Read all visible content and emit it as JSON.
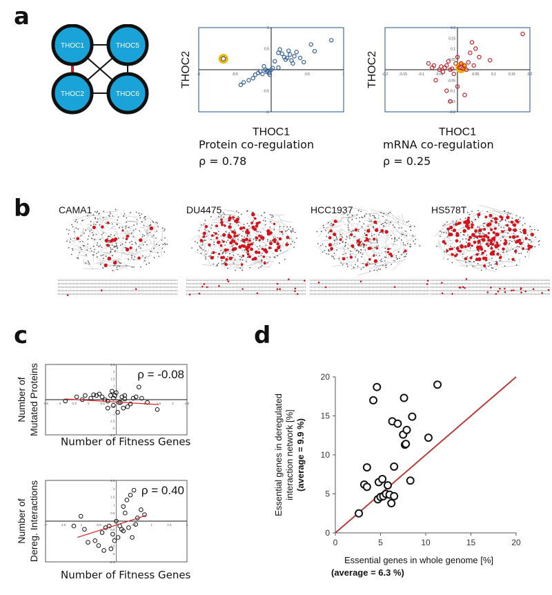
{
  "panels": {
    "a": "a",
    "b": "b",
    "c": "c",
    "d": "d"
  },
  "panel_a": {
    "complex_nodes": [
      "THOC1",
      "THOC5",
      "THOC2",
      "THOC6"
    ],
    "complex_edges": [
      [
        "THOC1",
        "THOC5"
      ],
      [
        "THOC1",
        "THOC2"
      ],
      [
        "THOC1",
        "THOC6"
      ],
      [
        "THOC5",
        "THOC2"
      ],
      [
        "THOC5",
        "THOC6"
      ],
      [
        "THOC2",
        "THOC6"
      ]
    ],
    "highlight_edge": [
      "THOC1",
      "THOC2"
    ],
    "node_color": "#1aa3d9",
    "highlight_color": "#c0202a",
    "protein_caption": "Protein co-regulation",
    "protein_rho": "ρ = 0.78",
    "mrna_caption": "mRNA co-regulation",
    "mrna_rho": "ρ = 0.25"
  },
  "panel_b": {
    "cell_lines": [
      "CAMA1",
      "DU4475",
      "HCC1937",
      "HS578T"
    ]
  },
  "chart_data": [
    {
      "id": "protein",
      "type": "scatter",
      "xlabel": "THOC1",
      "ylabel": "THOC2",
      "xlim": [
        -1,
        1
      ],
      "ylim": [
        -1,
        1
      ],
      "xticks": [
        "-1",
        "-0.5",
        "0.5",
        "1"
      ],
      "yticks": [
        "1",
        "0.5",
        "-0.5",
        "-1"
      ],
      "color": "#2f5f96",
      "highlight": {
        "x": -0.66,
        "y": 0.26,
        "color": "#f0b400"
      },
      "x": [
        -0.42,
        -0.38,
        -0.31,
        -0.25,
        -0.22,
        -0.18,
        -0.15,
        -0.12,
        -0.08,
        -0.05,
        -0.03,
        -0.02,
        0.0,
        0.02,
        -0.1,
        -0.06,
        0.05,
        0.1,
        0.12,
        0.15,
        0.18,
        0.2,
        0.22,
        0.24,
        0.26,
        0.28,
        0.3,
        0.32,
        0.35,
        0.4,
        0.45,
        0.55,
        0.6,
        0.83,
        0.1
      ],
      "y": [
        -0.36,
        -0.3,
        -0.25,
        -0.2,
        -0.12,
        -0.08,
        -0.04,
        -0.1,
        0.0,
        -0.02,
        -0.08,
        -0.12,
        0.0,
        0.04,
        0.08,
        -0.05,
        0.2,
        0.4,
        0.48,
        0.38,
        0.3,
        0.24,
        0.28,
        0.45,
        0.36,
        0.22,
        0.15,
        0.32,
        0.42,
        0.28,
        0.18,
        0.6,
        0.44,
        0.7,
        0.05
      ]
    },
    {
      "id": "mrna",
      "type": "scatter",
      "xlabel": "THOC1",
      "ylabel": "THOC2",
      "xlim": [
        -0.2,
        0.2
      ],
      "ylim": [
        -0.2,
        0.2
      ],
      "xticks": [
        "-0.2",
        "-0.15",
        "-0.1",
        "-0.05",
        "0.05",
        "0.1",
        "0.15",
        "0.2"
      ],
      "yticks": [
        "0.2",
        "0.15",
        "0.1",
        "0.05",
        "-0.05",
        "-0.1",
        "-0.15",
        "-0.2"
      ],
      "color": "#c0202a",
      "highlight": {
        "x": 0.01,
        "y": 0.01,
        "color": "#f0b400"
      },
      "x": [
        -0.08,
        -0.07,
        -0.065,
        -0.05,
        -0.045,
        -0.04,
        -0.035,
        -0.03,
        -0.025,
        -0.02,
        -0.015,
        -0.01,
        -0.005,
        0.0,
        0.005,
        0.01,
        0.015,
        0.02,
        0.025,
        0.03,
        0.035,
        0.04,
        0.05,
        0.06,
        0.09,
        0.18,
        0.045,
        -0.06,
        -0.03,
        0.0,
        0.02,
        -0.02
      ],
      "y": [
        0.03,
        0.01,
        0.02,
        0.0,
        0.015,
        -0.01,
        0.01,
        0.02,
        0.04,
        0.0,
        0.005,
        -0.02,
        0.03,
        0.06,
        0.01,
        0.03,
        0.005,
        0.02,
        0.0,
        0.035,
        0.08,
        0.13,
        0.1,
        0.06,
        0.045,
        0.17,
        0.02,
        -0.05,
        -0.1,
        -0.08,
        -0.12,
        -0.15
      ]
    },
    {
      "id": "mutated",
      "type": "scatter",
      "xlabel": "Number of Fitness Genes",
      "ylabel_lines": [
        "Number of",
        "Mutated Proteins"
      ],
      "rho": "ρ = -0.08",
      "xlim": [
        -2.5,
        2.5
      ],
      "ylim": [
        -2.5,
        2.5
      ],
      "line_color": "#d02020",
      "trend": [
        [
          -1.8,
          0.05
        ],
        [
          1.5,
          -0.35
        ]
      ],
      "x": [
        -1.4,
        -1.2,
        -1.1,
        -0.9,
        -0.8,
        -0.7,
        -0.6,
        -0.5,
        -0.4,
        -0.3,
        -0.2,
        -0.1,
        0.0,
        0.1,
        0.2,
        0.3,
        0.4,
        0.5,
        0.6,
        0.7,
        0.8,
        -0.3,
        -0.1,
        0.05,
        0.15,
        0.9,
        1.1,
        1.45,
        -0.15,
        -0.05,
        0.25,
        -1.8,
        0.3
      ],
      "y": [
        0.2,
        0.0,
        0.3,
        0.1,
        0.35,
        0.3,
        0.4,
        0.2,
        0.0,
        -0.1,
        0.3,
        0.1,
        0.5,
        -0.2,
        0.2,
        0.05,
        -0.5,
        -0.3,
        0.1,
        0.2,
        0.9,
        -0.6,
        -0.4,
        -0.9,
        -0.2,
        0.1,
        -0.2,
        -0.7,
        0.6,
        0.3,
        -0.6,
        -0.1,
        0.3
      ]
    },
    {
      "id": "dereg",
      "type": "scatter",
      "xlabel": "Number of Fitness Genes",
      "ylabel_lines": [
        "Number of",
        "Dereg. Interactions"
      ],
      "rho": "ρ = 0.40",
      "xlim": [
        -2,
        2
      ],
      "ylim": [
        -2.5,
        2.5
      ],
      "line_color": "#d02020",
      "trend": [
        [
          -1.1,
          -1.0
        ],
        [
          0.85,
          0.35
        ]
      ],
      "x": [
        -1.2,
        -1.0,
        -0.9,
        -0.8,
        -0.6,
        -0.5,
        -0.4,
        -0.3,
        -0.2,
        -0.1,
        0.0,
        0.1,
        0.2,
        0.3,
        0.4,
        0.5,
        0.6,
        0.7,
        0.8,
        -0.15,
        0.05,
        0.25,
        0.35,
        0.45,
        -0.35,
        0.15,
        0.55,
        0.2,
        -0.05
      ],
      "y": [
        -0.3,
        0.3,
        -0.5,
        -1.3,
        -1.2,
        -1.5,
        -0.7,
        -0.4,
        -0.3,
        -0.8,
        0.0,
        -0.3,
        -0.6,
        1.3,
        1.6,
        1.9,
        0.2,
        0.7,
        0.4,
        -1.7,
        -1.0,
        0.5,
        -0.4,
        -1.0,
        -1.8,
        -0.5,
        -0.2,
        0.9,
        -1.2
      ]
    },
    {
      "id": "essential",
      "type": "scatter",
      "xlabel": "Essential genes in whole genome [%]",
      "xlabel_note": "(average = 6.3 %)",
      "ylabel_lines": [
        "Essential genes in deregulated",
        "interaction  network [%]"
      ],
      "ylabel_note": "(average = 9.9 %)",
      "xlim": [
        0,
        20
      ],
      "ylim": [
        0,
        20
      ],
      "xticks": [
        "0",
        "5",
        "10",
        "15",
        "20"
      ],
      "yticks": [
        "0",
        "5",
        "10",
        "15",
        "20"
      ],
      "line_color": "#b83a36",
      "x": [
        2.6,
        3.2,
        3.5,
        3.5,
        4.2,
        4.6,
        4.7,
        4.8,
        5.0,
        5.2,
        5.3,
        5.6,
        5.8,
        6.0,
        6.2,
        6.3,
        6.5,
        6.5,
        6.9,
        7.5,
        7.6,
        7.7,
        7.8,
        7.9,
        8.3,
        8.5,
        10.3,
        11.3
      ],
      "y": [
        2.5,
        6.2,
        5.9,
        8.4,
        17.0,
        18.7,
        4.3,
        6.5,
        4.6,
        6.9,
        4.7,
        5.0,
        6.1,
        4.9,
        3.8,
        14.3,
        8.5,
        4.7,
        14.0,
        12.6,
        17.3,
        11.3,
        11.4,
        13.2,
        6.7,
        14.9,
        12.2,
        19.0
      ]
    }
  ]
}
